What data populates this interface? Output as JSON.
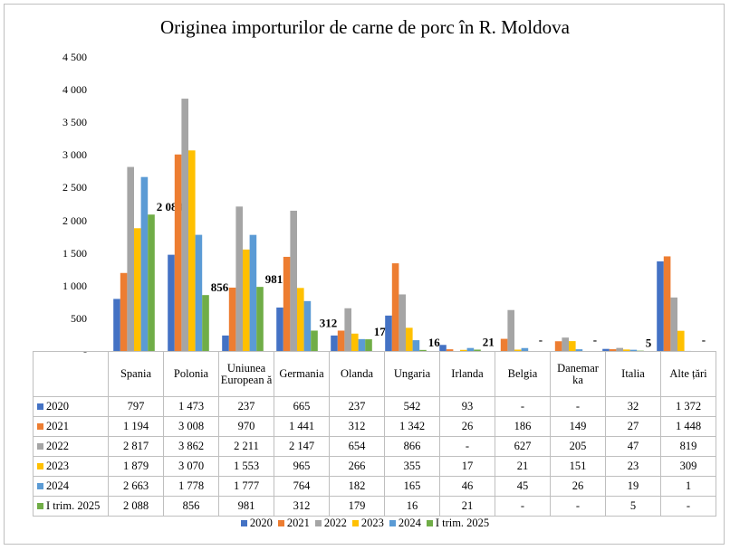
{
  "chart_data": {
    "type": "bar",
    "title": "Originea importurilor de carne de porc în R. Moldova",
    "categories": [
      "Spania",
      "Polonia",
      "Uniunea European ă",
      "Germania",
      "Olanda",
      "Ungaria",
      "Irlanda",
      "Belgia",
      "Danemar ka",
      "Italia",
      "Alte țări"
    ],
    "yticks": [
      "-",
      "500",
      "1 000",
      "1 500",
      "2 000",
      "2 500",
      "3 000",
      "3 500",
      "4 000",
      "4 500"
    ],
    "ylim": [
      0,
      4500
    ],
    "series": [
      {
        "name": "2020",
        "color": "#4472c4",
        "values": [
          797,
          1473,
          237,
          665,
          237,
          542,
          93,
          null,
          null,
          32,
          1372
        ],
        "display": [
          "797",
          "1 473",
          "237",
          "665",
          "237",
          "542",
          "93",
          "-",
          "-",
          "32",
          "1 372"
        ]
      },
      {
        "name": "2021",
        "color": "#ed7d31",
        "values": [
          1194,
          3008,
          970,
          1441,
          312,
          1342,
          26,
          186,
          149,
          27,
          1448
        ],
        "display": [
          "1 194",
          "3 008",
          "970",
          "1 441",
          "312",
          "1 342",
          "26",
          "186",
          "149",
          "27",
          "1 448"
        ]
      },
      {
        "name": "2022",
        "color": "#a5a5a5",
        "values": [
          2817,
          3862,
          2211,
          2147,
          654,
          866,
          null,
          627,
          205,
          47,
          819
        ],
        "display": [
          "2 817",
          "3 862",
          "2 211",
          "2 147",
          "654",
          "866",
          "-",
          "627",
          "205",
          "47",
          "819"
        ]
      },
      {
        "name": "2023",
        "color": "#ffc000",
        "values": [
          1879,
          3070,
          1553,
          965,
          266,
          355,
          17,
          21,
          151,
          23,
          309
        ],
        "display": [
          "1 879",
          "3 070",
          "1 553",
          "965",
          "266",
          "355",
          "17",
          "21",
          "151",
          "23",
          "309"
        ]
      },
      {
        "name": "2024",
        "color": "#5b9bd5",
        "values": [
          2663,
          1778,
          1777,
          764,
          182,
          165,
          46,
          45,
          26,
          19,
          1
        ],
        "display": [
          "2 663",
          "1 778",
          "1 777",
          "764",
          "182",
          "165",
          "46",
          "45",
          "26",
          "19",
          "1"
        ]
      },
      {
        "name": "I trim. 2025",
        "color": "#70ad47",
        "values": [
          2088,
          856,
          981,
          312,
          179,
          16,
          21,
          null,
          null,
          5,
          null
        ],
        "display": [
          "2 088",
          "856",
          "981",
          "312",
          "179",
          "16",
          "21",
          "-",
          "-",
          "5",
          "-"
        ]
      }
    ],
    "data_labels_series": "I trim. 2025",
    "grid": false,
    "legend": "bottom"
  }
}
